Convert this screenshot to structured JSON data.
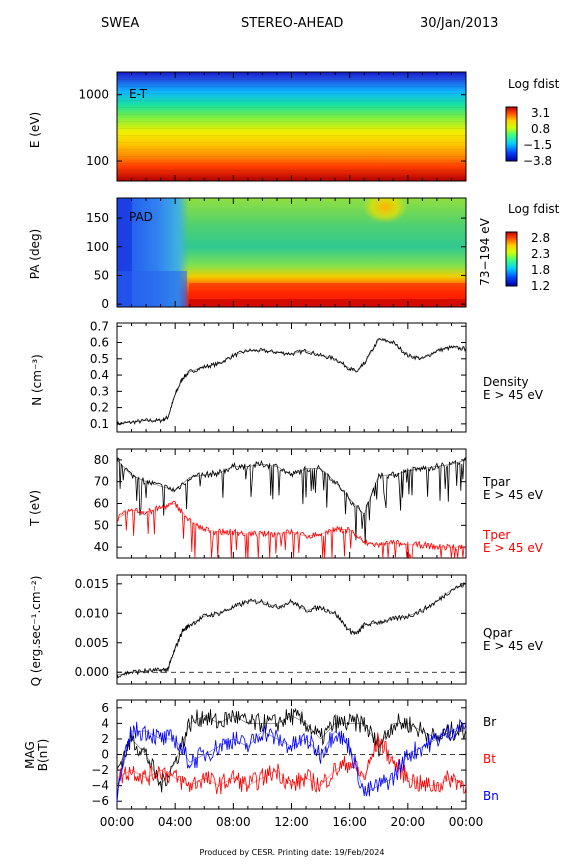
{
  "header": {
    "instrument": "SWEA",
    "spacecraft": "STEREO-AHEAD",
    "date": "30/Jan/2013"
  },
  "footer": "Produced by CESR.   Printing date: 19/Feb/2024",
  "colors": {
    "black": "#000000",
    "red": "#ff0000",
    "blue": "#0000ff"
  },
  "chart_data": [
    {
      "id": "et",
      "type": "heatmap",
      "inner_label": "E-T",
      "ylabel": "E (eV)",
      "yscale": "log",
      "ylim": [
        50,
        2200
      ],
      "ytick_values": [
        100,
        1000
      ],
      "ytick_labels": [
        "100",
        "1000"
      ],
      "colorbar": {
        "title": "Log fdist",
        "tick_labels": [
          "3.1",
          "0.8",
          "−1.5",
          "−3.8"
        ]
      }
    },
    {
      "id": "pad",
      "type": "heatmap",
      "inner_label": "PAD",
      "ylabel": "PA (deg)",
      "ylim": [
        -5,
        185
      ],
      "ytick_values": [
        0,
        50,
        100,
        150
      ],
      "ytick_labels": [
        "0",
        "50",
        "100",
        "150"
      ],
      "right_label": "73−194 eV",
      "colorbar": {
        "title": "Log fdist",
        "tick_labels": [
          "2.8",
          "2.3",
          "1.8",
          "1.2"
        ]
      }
    },
    {
      "id": "density",
      "type": "line",
      "ylabel": "N (cm⁻³)",
      "ylim": [
        0.05,
        0.72
      ],
      "ytick_values": [
        0.1,
        0.2,
        0.3,
        0.4,
        0.5,
        0.6,
        0.7
      ],
      "ytick_labels": [
        "0.1",
        "0.2",
        "0.3",
        "0.4",
        "0.5",
        "0.6",
        "0.7"
      ],
      "series": [
        {
          "name": "Density",
          "subname": "E > 45 eV",
          "color": "#000000",
          "x": [
            0,
            1,
            2,
            3,
            3.5,
            4,
            4.5,
            5,
            6,
            7,
            8,
            9,
            10,
            11,
            12,
            13,
            14,
            15,
            16,
            16.5,
            17,
            18,
            19,
            20,
            21,
            22,
            23,
            24
          ],
          "y": [
            0.1,
            0.11,
            0.12,
            0.12,
            0.14,
            0.28,
            0.38,
            0.42,
            0.45,
            0.47,
            0.52,
            0.55,
            0.55,
            0.54,
            0.53,
            0.55,
            0.52,
            0.5,
            0.44,
            0.42,
            0.47,
            0.62,
            0.6,
            0.52,
            0.5,
            0.55,
            0.57,
            0.56
          ]
        }
      ]
    },
    {
      "id": "temperature",
      "type": "line",
      "ylabel": "T (eV)",
      "ylim": [
        35,
        85
      ],
      "ytick_values": [
        40,
        50,
        60,
        70,
        80
      ],
      "ytick_labels": [
        "40",
        "50",
        "60",
        "70",
        "80"
      ],
      "series": [
        {
          "name": "Tpar",
          "subname": "E > 45 eV",
          "color": "#000000",
          "x": [
            0,
            1,
            2,
            3,
            4,
            5,
            6,
            7,
            8,
            9,
            10,
            11,
            12,
            13,
            14,
            15,
            16,
            17,
            18,
            19,
            20,
            21,
            22,
            23,
            24
          ],
          "y": [
            80,
            73,
            70,
            68,
            66,
            72,
            73,
            74,
            77,
            77,
            78,
            77,
            73,
            76,
            76,
            70,
            62,
            55,
            73,
            73,
            75,
            76,
            77,
            78,
            80
          ]
        },
        {
          "name": "Tper",
          "subname": "E > 45 eV",
          "color": "#ff0000",
          "x": [
            0,
            1,
            2,
            3,
            4,
            5,
            6,
            7,
            8,
            9,
            10,
            11,
            12,
            13,
            14,
            15,
            16,
            17,
            18,
            19,
            20,
            21,
            22,
            23,
            24
          ],
          "y": [
            53,
            57,
            56,
            58,
            60,
            52,
            48,
            47,
            47,
            46,
            46,
            46,
            47,
            45,
            46,
            48,
            48,
            42,
            41,
            42,
            41,
            41,
            40,
            40,
            40
          ]
        }
      ]
    },
    {
      "id": "qpar",
      "type": "line",
      "ylabel": "Q (erg.sec⁻¹.cm⁻²)",
      "ylim": [
        -0.002,
        0.0165
      ],
      "ytick_values": [
        0.0,
        0.005,
        0.01,
        0.015
      ],
      "ytick_labels": [
        "0.000",
        "0.005",
        "0.010",
        "0.015"
      ],
      "reference_line": 0,
      "series": [
        {
          "name": "Qpar",
          "subname": "E > 45 eV",
          "color": "#000000",
          "x": [
            0,
            1,
            2,
            3,
            3.5,
            4,
            4.5,
            5,
            6,
            7,
            8,
            9,
            10,
            11,
            12,
            13,
            14,
            15,
            16,
            16.5,
            17,
            18,
            19,
            20,
            21,
            22,
            23,
            24
          ],
          "y": [
            -0.0005,
            0.0,
            0.0002,
            0.0003,
            0.0005,
            0.004,
            0.007,
            0.008,
            0.0095,
            0.01,
            0.011,
            0.012,
            0.012,
            0.011,
            0.012,
            0.0105,
            0.011,
            0.01,
            0.007,
            0.0065,
            0.008,
            0.0085,
            0.009,
            0.0095,
            0.0105,
            0.012,
            0.014,
            0.015
          ]
        }
      ]
    },
    {
      "id": "mag",
      "type": "line",
      "ylabel": "MAG",
      "ylabel2": "B(nT)",
      "ylim": [
        -7,
        7
      ],
      "ytick_values": [
        -6,
        -4,
        -2,
        0,
        2,
        4,
        6
      ],
      "ytick_labels": [
        "−6",
        "−4",
        "−2",
        "0",
        "2",
        "4",
        "6"
      ],
      "reference_line": 0,
      "xlim": [
        0,
        24
      ],
      "xtick_values": [
        0,
        4,
        8,
        12,
        16,
        20,
        24
      ],
      "xtick_labels": [
        "00:00",
        "04:00",
        "08:00",
        "12:00",
        "16:00",
        "20:00",
        "00:00"
      ],
      "series": [
        {
          "name": "Br",
          "color": "#000000",
          "x": [
            0,
            1,
            2,
            3,
            4,
            5,
            6,
            7,
            8,
            9,
            10,
            11,
            12,
            13,
            14,
            15,
            16,
            17,
            18,
            19,
            20,
            21,
            22,
            23,
            24
          ],
          "y": [
            -2,
            2,
            0,
            -4,
            -1,
            4,
            5,
            4,
            5,
            4,
            4,
            4,
            5,
            4,
            2,
            4,
            4,
            4,
            1,
            4,
            4,
            3,
            2,
            3,
            3
          ]
        },
        {
          "name": "Bt",
          "color": "#ff0000",
          "x": [
            0,
            1,
            2,
            3,
            4,
            5,
            6,
            7,
            8,
            9,
            10,
            11,
            12,
            13,
            14,
            15,
            16,
            17,
            18,
            19,
            20,
            21,
            22,
            23,
            24
          ],
          "y": [
            -3,
            -2,
            -3,
            -2,
            -3,
            -4,
            -3,
            -4,
            -3,
            -4,
            -3,
            -2,
            -4,
            -3,
            -4,
            -2,
            -1,
            -3,
            2,
            -1,
            -3,
            -4,
            -4,
            -3,
            -4
          ]
        },
        {
          "name": "Bn",
          "color": "#0000ff",
          "x": [
            0,
            1,
            2,
            3,
            4,
            5,
            6,
            7,
            8,
            9,
            10,
            11,
            12,
            13,
            14,
            15,
            16,
            17,
            18,
            19,
            20,
            21,
            22,
            23,
            24
          ],
          "y": [
            -5,
            3,
            3,
            2,
            2,
            -1,
            0,
            1,
            2,
            1,
            3,
            2,
            1,
            2,
            0,
            3,
            1,
            -5,
            -4,
            -3,
            0,
            1,
            2,
            3,
            4
          ]
        }
      ]
    }
  ]
}
